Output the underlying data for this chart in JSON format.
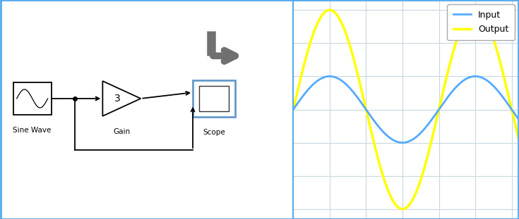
{
  "bg_color": "#ffffff",
  "diagram_bg": "#ffffff",
  "plot_bg": "#ffffff",
  "grid_color": "#c8d8e0",
  "plot_border_color": "#55aaee",
  "input_color": "#55aaff",
  "output_color": "#ffff00",
  "input_label": "Input",
  "output_label": "Output",
  "gain_value": "3",
  "sine_label": "Sine Wave",
  "gain_label": "Gain",
  "scope_label": "Scope",
  "n_points": 1000,
  "amplitude_input": 1.0,
  "amplitude_output": 3.0,
  "arrow_color": "#707070",
  "line_color": "#000000",
  "scope_border_color": "#6699cc",
  "fig_border_color": "#55aaee"
}
